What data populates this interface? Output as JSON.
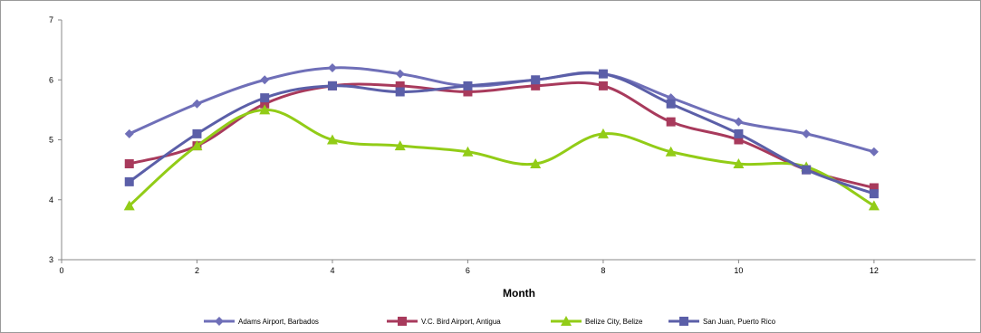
{
  "chart_data": {
    "type": "line",
    "title": "",
    "xlabel": "Month",
    "ylabel": "",
    "xlim": [
      0,
      13.5
    ],
    "ylim": [
      3,
      7
    ],
    "x_ticks": [
      "0",
      "2",
      "4",
      "6",
      "8",
      "10",
      "12"
    ],
    "y_ticks": [
      "3",
      "4",
      "5",
      "6",
      "7"
    ],
    "legend_position": "bottom",
    "x": [
      1,
      2,
      3,
      4,
      5,
      6,
      7,
      8,
      9,
      10,
      11,
      12
    ],
    "series": [
      {
        "name": "Adams Airport, Barbados",
        "marker": "diamond",
        "color": "#6F6FB8",
        "values": [
          5.1,
          5.6,
          6.0,
          6.2,
          6.1,
          5.9,
          6.0,
          6.1,
          5.7,
          5.3,
          5.1,
          4.8
        ]
      },
      {
        "name": "V.C. Bird Airport, Antigua",
        "marker": "square",
        "color": "#A83A5C",
        "values": [
          4.6,
          4.9,
          5.6,
          5.9,
          5.9,
          5.8,
          5.9,
          5.9,
          5.3,
          5.0,
          4.5,
          4.2
        ]
      },
      {
        "name": "Belize City, Belize",
        "marker": "triangle",
        "color": "#92CC17",
        "values": [
          3.9,
          4.9,
          5.5,
          5.0,
          4.9,
          4.8,
          4.6,
          5.1,
          4.8,
          4.6,
          4.55,
          3.9
        ]
      },
      {
        "name": "San Juan, Puerto Rico",
        "marker": "square",
        "color": "#5B5FA8",
        "values": [
          4.3,
          5.1,
          5.7,
          5.9,
          5.8,
          5.9,
          6.0,
          6.1,
          5.6,
          5.1,
          4.5,
          4.1
        ]
      }
    ]
  },
  "colors": {
    "axis": "#888888",
    "frame": "#9a9a9a"
  }
}
